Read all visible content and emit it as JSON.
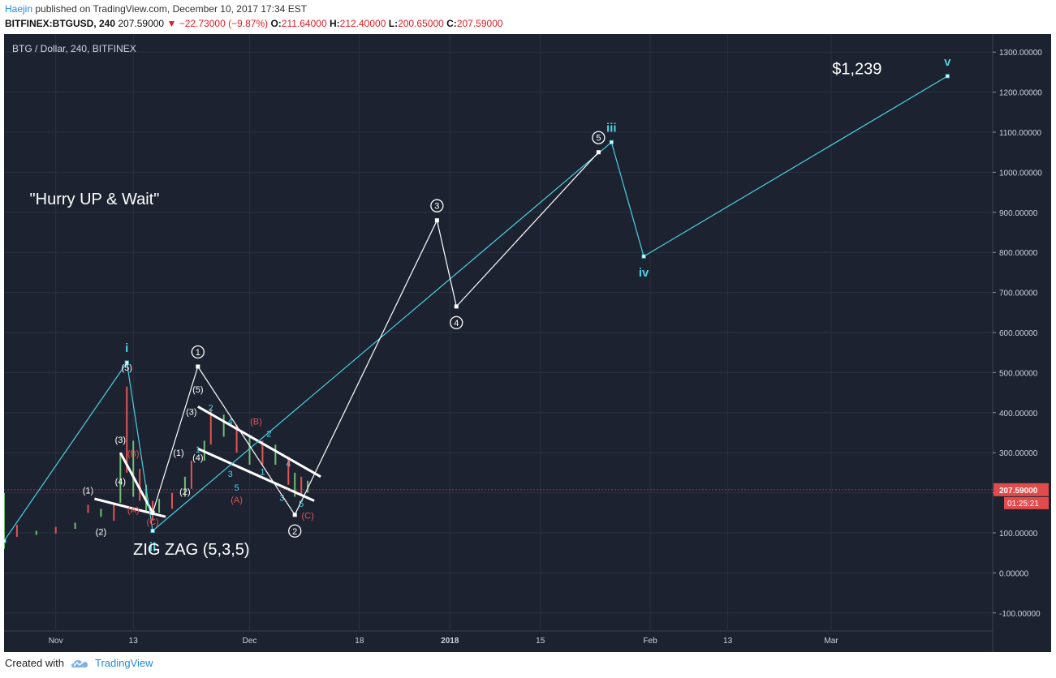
{
  "header": {
    "author": "Haejin",
    "published": "published on TradingView.com, December 10, 2017 17:34 EST",
    "symbol": "BITFINEX:BTGUSD, 240",
    "last": "207.59000",
    "change": "−22.73000 (−9.87%)",
    "o_label": "O:",
    "o_value": "211.64000",
    "h_label": "H:",
    "h_value": "212.40000",
    "l_label": "L:",
    "l_value": "200.65000",
    "c_label": "C:",
    "c_value": "207.59000"
  },
  "footer": {
    "created_with": "Created with",
    "brand": "TradingView"
  },
  "colors": {
    "background": "#1c2230",
    "grid": "#2a3140",
    "cyan": "#4dd0e1",
    "white": "#ffffff",
    "red": "#e05555",
    "up": "#6fbf73",
    "down": "#e05555",
    "price_badge": "#e24b4b"
  },
  "chart_data": {
    "type": "line",
    "title": "BTG / Dollar, 240, BITFINEX",
    "price_badge": "207.59000",
    "countdown_badge": "01:25:21",
    "y_axis": {
      "ylim": [
        -145,
        1345
      ],
      "ticks": [
        -100,
        0,
        100,
        200,
        300,
        400,
        500,
        600,
        700,
        800,
        900,
        1000,
        1100,
        1200,
        1300
      ],
      "tick_labels": [
        "-100.00000",
        "0.00000",
        "100.00000",
        "200.00000",
        "300.00000",
        "400.00000",
        "500.00000",
        "600.00000",
        "700.00000",
        "800.00000",
        "900.00000",
        "1000.00000",
        "1100.00000",
        "1200.00000",
        "1300.00000"
      ]
    },
    "x_axis": {
      "xlim": [
        "2017-10-24",
        "2018-03-26"
      ],
      "ticks": [
        "2017-11-01",
        "2017-11-13",
        "2017-12-01",
        "2017-12-18",
        "2018-01-01",
        "2018-01-15",
        "2018-02-01",
        "2018-02-13",
        "2018-03-01"
      ],
      "tick_labels": [
        "Nov",
        "13",
        "Dec",
        "18",
        "2018",
        "15",
        "Feb",
        "13",
        "Mar"
      ]
    },
    "price_series": [
      [
        "2017-10-24",
        200,
        60
      ],
      [
        "2017-10-26",
        120,
        90
      ],
      [
        "2017-10-29",
        105,
        95
      ],
      [
        "2017-11-01",
        115,
        98
      ],
      [
        "2017-11-04",
        125,
        110
      ],
      [
        "2017-11-06",
        170,
        150
      ],
      [
        "2017-11-08",
        160,
        140
      ],
      [
        "2017-11-10",
        170,
        130
      ],
      [
        "2017-11-11",
        300,
        175
      ],
      [
        "2017-11-12",
        465,
        250
      ],
      [
        "2017-11-13",
        330,
        190
      ],
      [
        "2017-11-14",
        260,
        180
      ],
      [
        "2017-11-15",
        220,
        150
      ],
      [
        "2017-11-16",
        180,
        130
      ],
      [
        "2017-11-17",
        185,
        150
      ],
      [
        "2017-11-19",
        200,
        160
      ],
      [
        "2017-11-21",
        240,
        190
      ],
      [
        "2017-11-22",
        280,
        210
      ],
      [
        "2017-11-24",
        330,
        280
      ],
      [
        "2017-11-25",
        410,
        320
      ],
      [
        "2017-11-27",
        395,
        340
      ],
      [
        "2017-11-29",
        370,
        300
      ],
      [
        "2017-12-01",
        345,
        270
      ],
      [
        "2017-12-03",
        330,
        270
      ],
      [
        "2017-12-05",
        320,
        270
      ],
      [
        "2017-12-07",
        290,
        220
      ],
      [
        "2017-12-08",
        250,
        190
      ],
      [
        "2017-12-09",
        240,
        195
      ],
      [
        "2017-12-10",
        230,
        200
      ]
    ],
    "cyan_waves": [
      {
        "x": "2017-10-24",
        "y": 80
      },
      {
        "x": "2017-11-12",
        "y": 525,
        "label": "i"
      },
      {
        "x": "2017-11-16",
        "y": 105,
        "label": "ii"
      },
      {
        "x": "2018-01-26",
        "y": 1075,
        "label": "iii"
      },
      {
        "x": "2018-01-31",
        "y": 790,
        "label": "iv"
      },
      {
        "x": "2018-03-19",
        "y": 1240,
        "label": "v"
      }
    ],
    "white_waves": [
      {
        "x": "2017-11-16",
        "y": 150
      },
      {
        "x": "2017-11-23",
        "y": 515,
        "label": "1"
      },
      {
        "x": "2017-12-08",
        "y": 145,
        "label": "2"
      },
      {
        "x": "2017-12-30",
        "y": 880,
        "label": "3"
      },
      {
        "x": "2018-01-02",
        "y": 665,
        "label": "4"
      },
      {
        "x": "2018-01-24",
        "y": 1050,
        "label": "5"
      }
    ],
    "wedges": [
      {
        "upper": [
          [
            "2017-11-11",
            300
          ],
          [
            "2017-11-16",
            150
          ]
        ],
        "lower": [
          [
            "2017-11-07",
            185
          ],
          [
            "2017-11-18",
            140
          ]
        ]
      },
      {
        "upper": [
          [
            "2017-11-23",
            415
          ],
          [
            "2017-12-12",
            240
          ]
        ],
        "lower": [
          [
            "2017-11-23",
            310
          ],
          [
            "2017-12-11",
            180
          ]
        ]
      }
    ],
    "annotations": [
      {
        "text": "\"Hurry UP & Wait\"",
        "x": "2017-11-07",
        "y": 920,
        "color": "white",
        "size": 20
      },
      {
        "text": "ZIG ZAG (5,3,5)",
        "x": "2017-11-22",
        "y": 45,
        "color": "white",
        "size": 20
      },
      {
        "text": "$1,239",
        "x": "2018-03-05",
        "y": 1245,
        "color": "white",
        "size": 20
      },
      {
        "text": "(5)",
        "x": "2017-11-12",
        "y": 505,
        "color": "white",
        "size": 11
      },
      {
        "text": "(3)",
        "x": "2017-11-11",
        "y": 325,
        "color": "white",
        "size": 11
      },
      {
        "text": "(4)",
        "x": "2017-11-11",
        "y": 220,
        "color": "white",
        "size": 11
      },
      {
        "text": "(1)",
        "x": "2017-11-06",
        "y": 198,
        "color": "white",
        "size": 11
      },
      {
        "text": "(2)",
        "x": "2017-11-08",
        "y": 95,
        "color": "white",
        "size": 11
      },
      {
        "text": "(B)",
        "x": "2017-11-13",
        "y": 290,
        "color": "red",
        "size": 11
      },
      {
        "text": "(A)",
        "x": "2017-11-13",
        "y": 150,
        "color": "red",
        "size": 11
      },
      {
        "text": "(C)",
        "x": "2017-11-16",
        "y": 120,
        "color": "red",
        "size": 11
      },
      {
        "text": "(5)",
        "x": "2017-11-23",
        "y": 450,
        "color": "white",
        "size": 11
      },
      {
        "text": "(3)",
        "x": "2017-11-22",
        "y": 395,
        "color": "white",
        "size": 11
      },
      {
        "text": "(1)",
        "x": "2017-11-20",
        "y": 292,
        "color": "white",
        "size": 11
      },
      {
        "text": "(4)",
        "x": "2017-11-23",
        "y": 280,
        "color": "white",
        "size": 11
      },
      {
        "text": "(2)",
        "x": "2017-11-21",
        "y": 195,
        "color": "white",
        "size": 11
      },
      {
        "text": "2",
        "x": "2017-11-25",
        "y": 405,
        "color": "cyan",
        "size": 11
      },
      {
        "text": "4",
        "x": "2017-11-28",
        "y": 370,
        "color": "cyan",
        "size": 11
      },
      {
        "text": "3",
        "x": "2017-11-28",
        "y": 240,
        "color": "cyan",
        "size": 11
      },
      {
        "text": "5",
        "x": "2017-11-29",
        "y": 205,
        "color": "cyan",
        "size": 11
      },
      {
        "text": "1",
        "x": "2017-11-23",
        "y": 300,
        "color": "cyan",
        "size": 11
      },
      {
        "text": "(A)",
        "x": "2017-11-29",
        "y": 175,
        "color": "red",
        "size": 11
      },
      {
        "text": "(B)",
        "x": "2017-12-02",
        "y": 370,
        "color": "red",
        "size": 11
      },
      {
        "text": "2",
        "x": "2017-12-04",
        "y": 340,
        "color": "cyan",
        "size": 11
      },
      {
        "text": "1",
        "x": "2017-12-03",
        "y": 245,
        "color": "cyan",
        "size": 11
      },
      {
        "text": "4",
        "x": "2017-12-07",
        "y": 265,
        "color": "cyan",
        "size": 11
      },
      {
        "text": "3",
        "x": "2017-12-06",
        "y": 180,
        "color": "cyan",
        "size": 11
      },
      {
        "text": "5",
        "x": "2017-12-09",
        "y": 165,
        "color": "cyan",
        "size": 11
      },
      {
        "text": "(C)",
        "x": "2017-12-10",
        "y": 135,
        "color": "red",
        "size": 11
      }
    ]
  }
}
